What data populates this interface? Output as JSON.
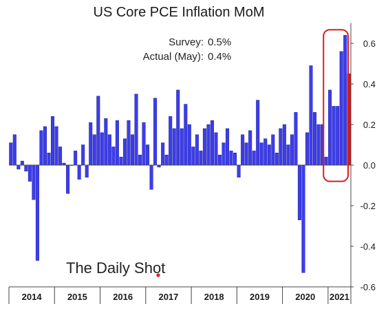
{
  "chart_data": {
    "type": "bar",
    "title": "US Core PCE Inflation MoM",
    "annotations": {
      "survey_label": "Survey:",
      "survey_value": "0.5%",
      "actual_label": "Actual (May):",
      "actual_value": "0.4%"
    },
    "watermark": "The Daily Shot",
    "ylim": [
      -0.6,
      0.7
    ],
    "yticks": [
      -0.6,
      -0.4,
      -0.2,
      0.0,
      0.2,
      0.4,
      0.6
    ],
    "ytick_labels": [
      "-0.6",
      "-0.4",
      "-0.2",
      "0.0",
      "0.2",
      "0.4",
      "0.6"
    ],
    "y_axis_side": "right",
    "grid": false,
    "years": [
      "2014",
      "2015",
      "2016",
      "2017",
      "2018",
      "2019",
      "2020",
      "2021"
    ],
    "months_per_year": [
      12,
      12,
      12,
      12,
      12,
      12,
      12,
      5
    ],
    "values": [
      0.11,
      0.15,
      -0.02,
      0.02,
      -0.03,
      -0.08,
      -0.17,
      -0.47,
      0.17,
      0.19,
      0.06,
      0.24,
      0.19,
      0.09,
      0.01,
      -0.14,
      0.0,
      0.07,
      -0.07,
      0.1,
      -0.06,
      0.21,
      0.15,
      0.34,
      0.16,
      0.23,
      0.15,
      0.09,
      0.22,
      0.04,
      0.13,
      0.22,
      0.15,
      0.35,
      0.05,
      0.21,
      0.1,
      -0.12,
      0.33,
      -0.01,
      0.11,
      0.05,
      0.24,
      0.18,
      0.37,
      0.18,
      0.3,
      0.2,
      0.09,
      0.15,
      0.07,
      0.18,
      0.2,
      0.22,
      0.16,
      0.05,
      0.11,
      0.18,
      0.07,
      0.06,
      -0.06,
      0.15,
      0.11,
      0.17,
      0.07,
      0.32,
      0.11,
      0.13,
      0.1,
      0.15,
      0.06,
      0.18,
      0.2,
      0.1,
      0.15,
      0.26,
      -0.27,
      -0.53,
      0.16,
      0.49,
      0.26,
      0.2,
      0.2,
      0.04,
      0.37,
      0.29,
      0.29,
      0.56,
      0.64
    ],
    "actual_value": 0.45,
    "bar_color": "#3c3cf0",
    "bar_edge_color": "#22228a",
    "actual_bar_color": "#ee1111",
    "highlight_box_color": "#d81b1b",
    "watermark_dot_color": "#e02020"
  }
}
